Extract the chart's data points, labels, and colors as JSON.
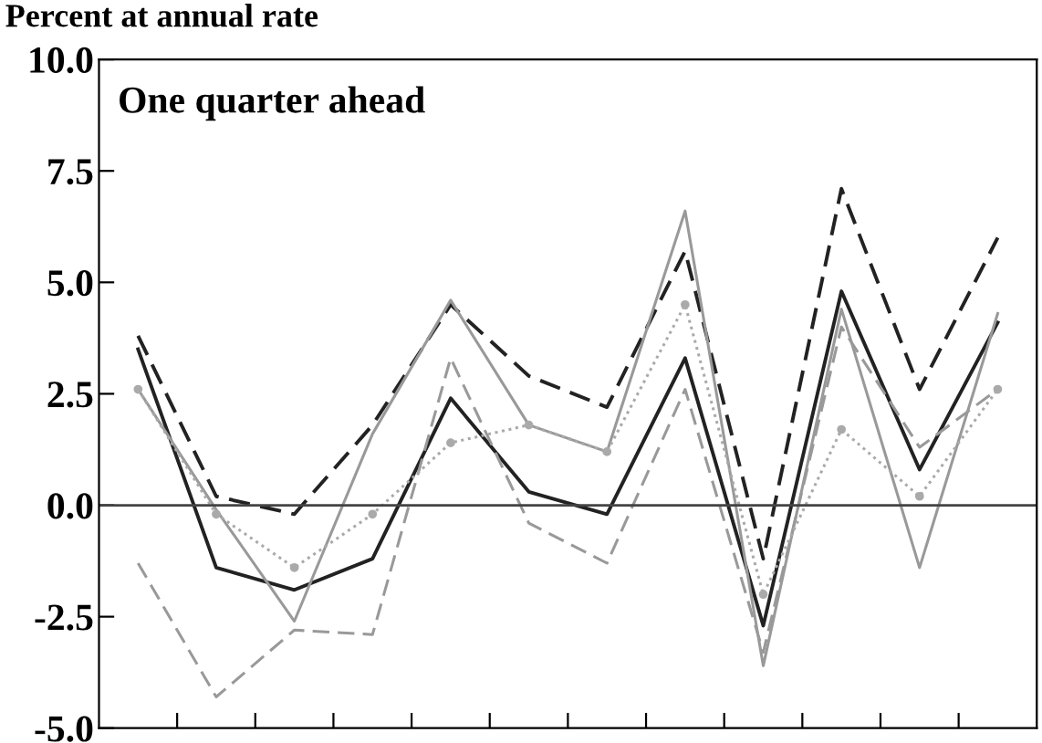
{
  "chart_data": {
    "type": "line",
    "title": "One quarter ahead",
    "ylabel": "Percent at annual rate",
    "categories": [
      null,
      null,
      null,
      null,
      null,
      null,
      null,
      null,
      null,
      null,
      null,
      null
    ],
    "ylim": [
      -5,
      10
    ],
    "yticks": [
      {
        "value": -5,
        "label": "-5.0"
      },
      {
        "value": -2.5,
        "label": "-2.5"
      },
      {
        "value": 0,
        "label": "0.0"
      },
      {
        "value": 2.5,
        "label": "2.5"
      },
      {
        "value": 5,
        "label": "5.0"
      },
      {
        "value": 7.5,
        "label": "7.5"
      },
      {
        "value": 10,
        "label": "10.0"
      }
    ],
    "ref_lines": [
      {
        "axis": "y",
        "value": 0,
        "color": "#444444",
        "line_style": "solid"
      }
    ],
    "grid": false,
    "legend": false,
    "series": [
      {
        "color": "#222222",
        "line_style": "solid",
        "marker": "none",
        "values": [
          3.5,
          -1.4,
          -1.9,
          -1.2,
          2.4,
          0.3,
          -0.2,
          3.3,
          -2.7,
          4.8,
          0.8,
          4.1
        ]
      },
      {
        "color": "#222222",
        "line_style": "dashed",
        "marker": "none",
        "values": [
          3.8,
          0.2,
          -0.2,
          1.8,
          4.5,
          2.9,
          2.2,
          5.7,
          -1.2,
          7.1,
          2.6,
          6.0
        ]
      },
      {
        "color": "#999999",
        "line_style": "solid",
        "marker": "none",
        "values": [
          2.6,
          -0.1,
          -2.6,
          1.6,
          4.6,
          1.8,
          1.2,
          6.6,
          -3.6,
          4.4,
          -1.4,
          4.3
        ]
      },
      {
        "color": "#999999",
        "line_style": "dashed",
        "marker": "none",
        "values": [
          -1.3,
          -4.3,
          -2.8,
          -2.9,
          3.3,
          -0.4,
          -1.3,
          2.6,
          -3.3,
          4.0,
          1.3,
          2.6
        ]
      },
      {
        "color": "#aaaaaa",
        "line_style": "dotted",
        "marker": "circle",
        "values": [
          2.6,
          -0.2,
          -1.4,
          -0.2,
          1.4,
          1.8,
          1.2,
          4.5,
          -2.0,
          1.7,
          0.2,
          2.6
        ]
      }
    ]
  }
}
